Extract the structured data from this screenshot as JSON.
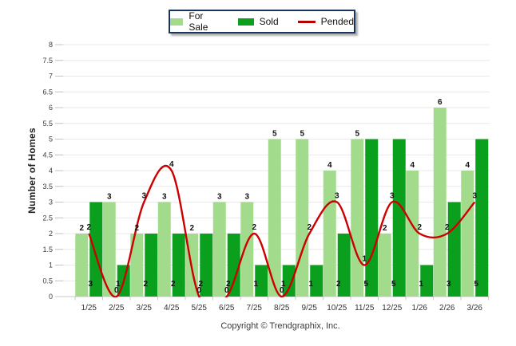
{
  "legend": {
    "items": [
      {
        "label": "For Sale",
        "type": "bar",
        "color": "#a3db8c"
      },
      {
        "label": "Sold",
        "type": "bar",
        "color": "#0aa01e"
      },
      {
        "label": "Pended",
        "type": "line",
        "color": "#b70000"
      }
    ]
  },
  "footer": {
    "copyright": "Copyright © Trendgraphix, Inc."
  },
  "chart_data": {
    "type": "bar",
    "subtype": "grouped bars with smoothed line overlay",
    "title": "",
    "xlabel": "",
    "ylabel": "Number of Homes",
    "categories": [
      "1/25",
      "2/25",
      "3/25",
      "4/25",
      "5/25",
      "6/25",
      "7/25",
      "8/25",
      "9/25",
      "10/25",
      "11/25",
      "12/25",
      "1/26",
      "2/26",
      "3/26"
    ],
    "series": [
      {
        "name": "For Sale",
        "type": "bar",
        "color": "#a3db8c",
        "values": [
          2,
          3,
          2,
          3,
          2,
          3,
          3,
          5,
          5,
          4,
          5,
          2,
          4,
          6,
          4
        ]
      },
      {
        "name": "Sold",
        "type": "bar",
        "color": "#0aa01e",
        "values": [
          3,
          1,
          2,
          2,
          2,
          2,
          1,
          1,
          1,
          2,
          5,
          5,
          1,
          3,
          5
        ]
      },
      {
        "name": "Pended",
        "type": "line",
        "color": "#cc0000",
        "values": [
          2,
          0,
          3,
          4,
          0,
          0,
          2,
          0,
          2,
          3,
          1,
          3,
          2,
          2,
          3
        ]
      }
    ],
    "ylim": [
      0,
      8
    ],
    "ytick_step": 0.5,
    "grid": "horizontal",
    "legend_position": "top-center",
    "value_labels": "shown"
  }
}
